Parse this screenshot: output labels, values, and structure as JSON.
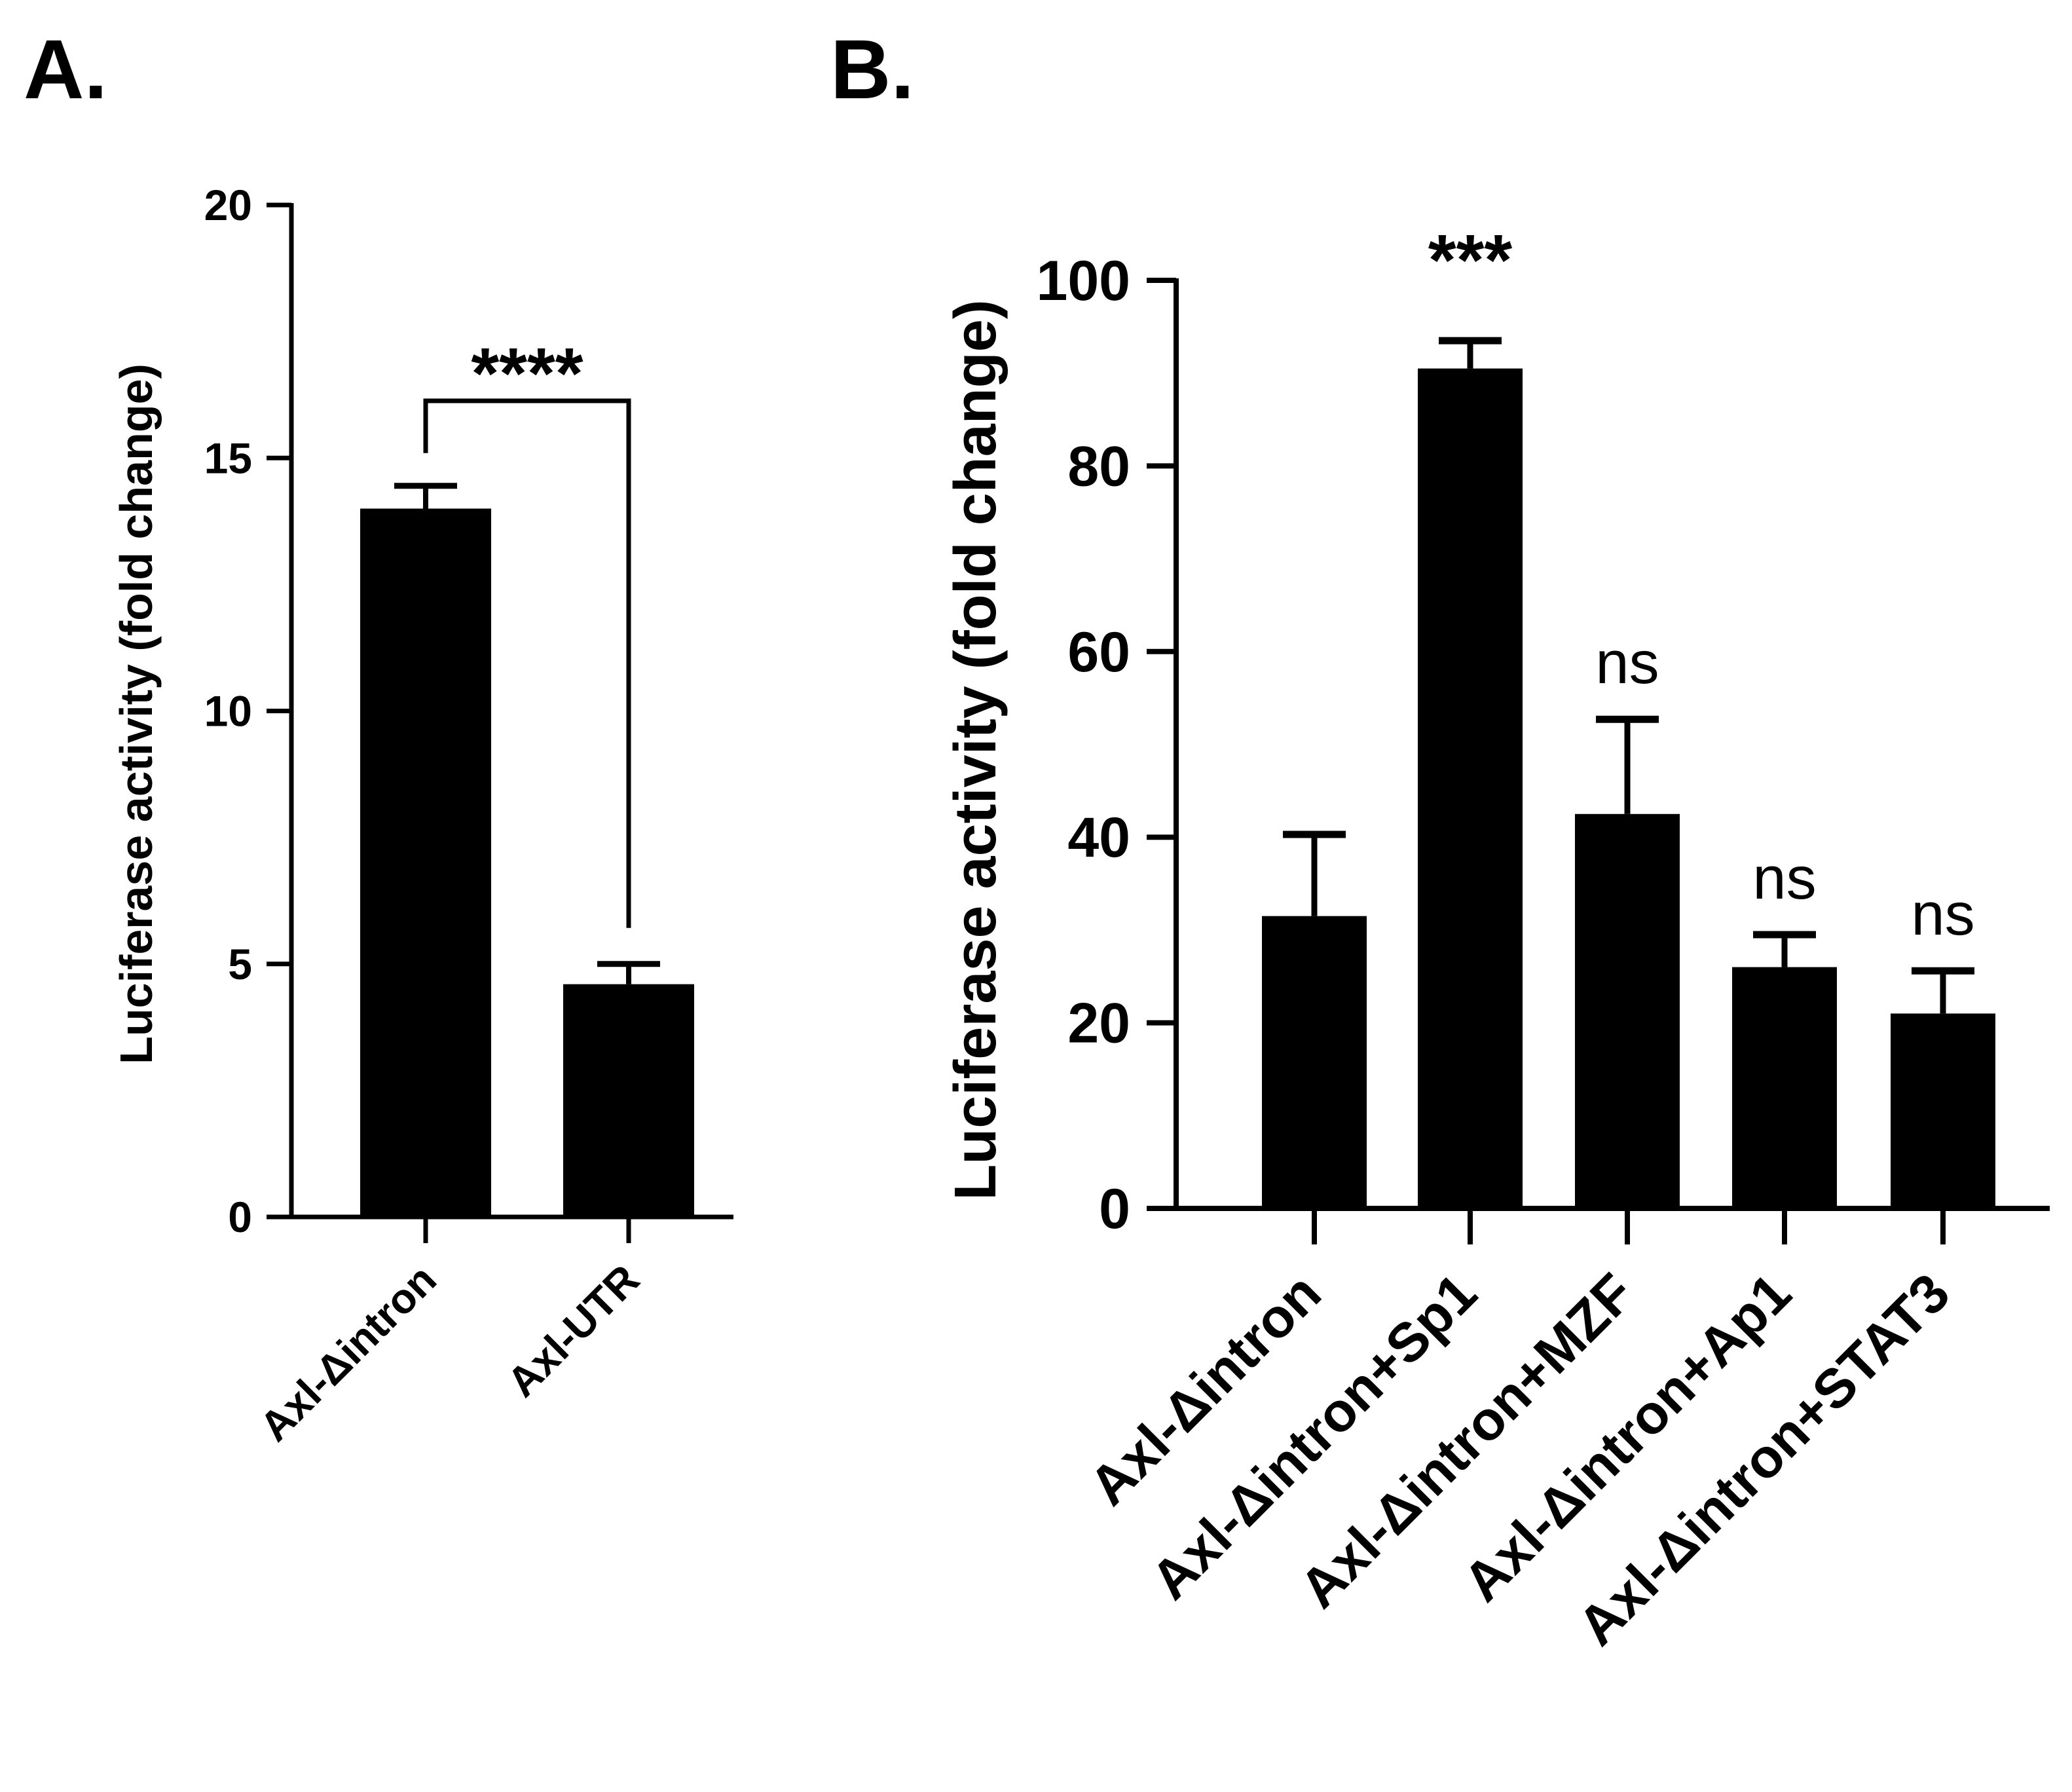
{
  "chart_data": [
    {
      "panel_label": "A.",
      "type": "bar",
      "ylabel": "Luciferase activity (fold change)",
      "ylim": [
        0,
        20
      ],
      "yticks": [
        "0",
        "5",
        "10",
        "15",
        "20"
      ],
      "categories": [
        "Axl-Δintron",
        "Axl-UTR"
      ],
      "values": [
        14.0,
        4.6
      ],
      "errors": [
        0.45,
        0.4
      ],
      "significance": {
        "label": "****",
        "between": [
          0,
          1
        ]
      }
    },
    {
      "panel_label": "B.",
      "type": "bar",
      "ylabel": "Luciferase activity (fold change)",
      "ylim": [
        0,
        100
      ],
      "yticks": [
        "0",
        "20",
        "40",
        "60",
        "80",
        "100"
      ],
      "categories": [
        "Axl-Δintron",
        "Axl-Δintron+Sp1",
        "Axl-Δintron+MZF",
        "Axl-Δintron+Ap1",
        "Axl-Δintron+STAT3"
      ],
      "values": [
        31.5,
        90.5,
        42.5,
        26.0,
        21.0
      ],
      "errors": [
        8.8,
        3.0,
        10.2,
        3.5,
        4.6
      ],
      "annotations": [
        "",
        "***",
        "ns",
        "ns",
        "ns"
      ]
    }
  ]
}
